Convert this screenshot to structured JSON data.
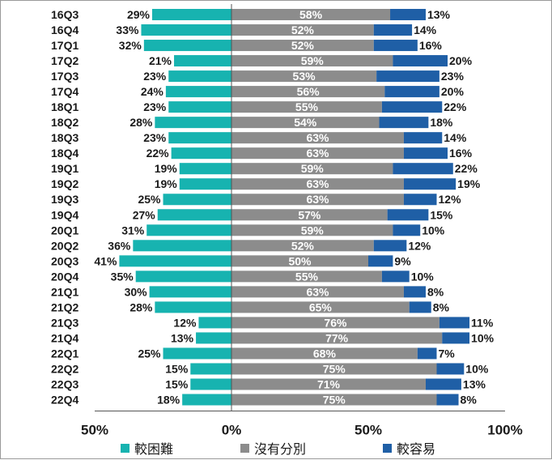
{
  "chart_data": {
    "type": "bar",
    "orientation": "horizontal",
    "stacked": "diverging",
    "categories": [
      "16Q3",
      "16Q4",
      "17Q1",
      "17Q2",
      "17Q3",
      "17Q4",
      "18Q1",
      "18Q2",
      "18Q3",
      "18Q4",
      "19Q1",
      "19Q2",
      "19Q3",
      "19Q4",
      "20Q1",
      "20Q2",
      "20Q3",
      "20Q4",
      "21Q1",
      "21Q2",
      "21Q3",
      "21Q4",
      "22Q1",
      "22Q2",
      "22Q3",
      "22Q4"
    ],
    "series": [
      {
        "name": "較困難",
        "color": "#17b3b0",
        "values": [
          29,
          33,
          32,
          21,
          23,
          24,
          23,
          28,
          23,
          22,
          19,
          19,
          25,
          27,
          31,
          36,
          41,
          35,
          30,
          28,
          12,
          13,
          25,
          15,
          15,
          18
        ]
      },
      {
        "name": "沒有分別",
        "color": "#8c8c8c",
        "values": [
          58,
          52,
          52,
          59,
          53,
          56,
          55,
          54,
          63,
          63,
          59,
          63,
          63,
          57,
          59,
          52,
          50,
          55,
          63,
          65,
          76,
          77,
          68,
          75,
          71,
          75
        ]
      },
      {
        "name": "較容易",
        "color": "#1f5fa6",
        "values": [
          13,
          14,
          16,
          20,
          23,
          20,
          22,
          18,
          14,
          16,
          22,
          19,
          12,
          15,
          10,
          12,
          9,
          10,
          8,
          8,
          11,
          10,
          7,
          10,
          13,
          8
        ]
      }
    ],
    "xaxis": {
      "ticks": [
        "50%",
        "0%",
        "50%",
        "100%"
      ],
      "range": [
        -50,
        100
      ]
    },
    "grid": false,
    "legend_position": "bottom"
  }
}
